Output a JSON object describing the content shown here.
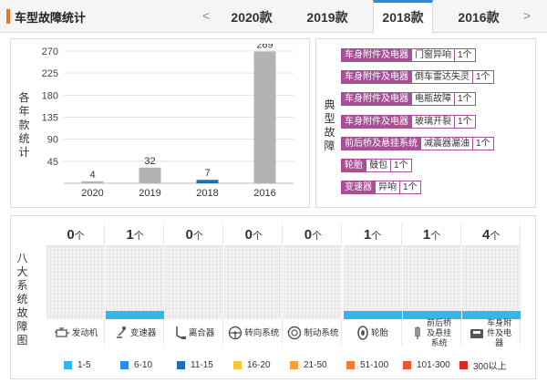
{
  "header": {
    "title": "车型故障统计",
    "prev_arrow": "<",
    "next_arrow": ">",
    "tabs": [
      {
        "label": "2020款",
        "active": false
      },
      {
        "label": "2019款",
        "active": false
      },
      {
        "label": "2018款",
        "active": true
      },
      {
        "label": "2016款",
        "active": false
      }
    ]
  },
  "left_panel": {
    "ylabel": "各年款统计"
  },
  "chart_data": {
    "type": "bar",
    "categories": [
      "2020",
      "2019",
      "2018",
      "2016"
    ],
    "values": [
      4,
      32,
      7,
      269
    ],
    "data_labels": [
      "4",
      "32",
      "7",
      "269"
    ],
    "title": "",
    "xlabel": "",
    "ylabel": "各年款统计",
    "ylim": [
      0,
      270
    ],
    "yticks": [
      45,
      90,
      135,
      180,
      225,
      270
    ],
    "grid": true,
    "colors": {
      "default": "#b3b3b3",
      "highlight": "#1f6fb5"
    },
    "highlight_category": "2018"
  },
  "right_panel": {
    "label": "典型故障",
    "faults": [
      {
        "category": "车身附件及电器",
        "issue": "门窗异响",
        "count": "1个"
      },
      {
        "category": "车身附件及电器",
        "issue": "倒车雷达失灵",
        "count": "1个"
      },
      {
        "category": "车身附件及电器",
        "issue": "电瓶故障",
        "count": "1个"
      },
      {
        "category": "车身附件及电器",
        "issue": "玻璃开裂",
        "count": "1个"
      },
      {
        "category": "前后桥及悬挂系统",
        "issue": "减震器漏油",
        "count": "1个"
      },
      {
        "category": "轮胎",
        "issue": "鼓包",
        "count": "1个"
      },
      {
        "category": "变速器",
        "issue": "异响",
        "count": "1个"
      }
    ]
  },
  "bottom_panel": {
    "label": "八大系统故障图",
    "unit": "个",
    "systems": [
      {
        "name": "发动机",
        "count": 0,
        "icon": "engine-icon"
      },
      {
        "name": "变速器",
        "count": 1,
        "icon": "gear-shift-icon"
      },
      {
        "name": "离合器",
        "count": 0,
        "icon": "clutch-pedal-icon"
      },
      {
        "name": "转向系统",
        "count": 0,
        "icon": "steering-wheel-icon"
      },
      {
        "name": "制动系统",
        "count": 0,
        "icon": "brake-disc-icon"
      },
      {
        "name": "轮胎",
        "count": 1,
        "icon": "tire-icon"
      },
      {
        "name": "前后桥及悬挂系统",
        "count": 1,
        "icon": "suspension-icon"
      },
      {
        "name": "车身附件及电器",
        "count": 4,
        "icon": "car-body-icon"
      }
    ],
    "legend": [
      {
        "label": "1-5",
        "color": "#38b4ec"
      },
      {
        "label": "6-10",
        "color": "#2a8de6"
      },
      {
        "label": "11-15",
        "color": "#1f6fb5"
      },
      {
        "label": "16-20",
        "color": "#f3c83a"
      },
      {
        "label": "21-50",
        "color": "#f0a23a"
      },
      {
        "label": "51-100",
        "color": "#ec7f2f"
      },
      {
        "label": "101-300",
        "color": "#e6592a"
      },
      {
        "label": "300以上",
        "color": "#d92a23"
      }
    ]
  }
}
